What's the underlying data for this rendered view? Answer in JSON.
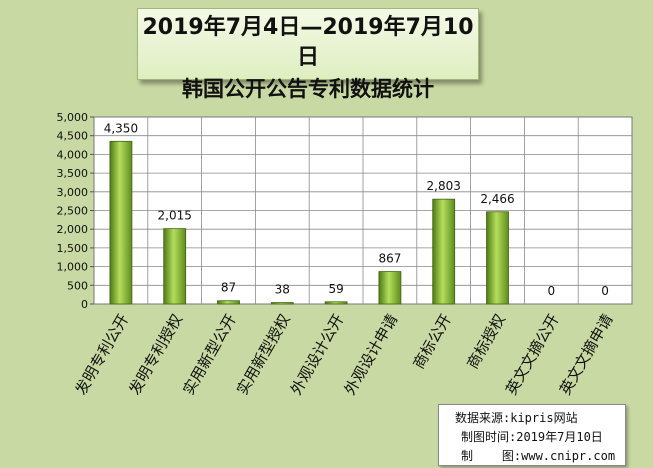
{
  "title": {
    "line1": "2019年7月4日—2019年7月10日",
    "line2": "韩国公开公告专利数据统计"
  },
  "source": {
    "data_source_label": "数据来源:",
    "data_source_value": "kipris网站",
    "date_label": "制图时间:",
    "date_value": "2019年7月10日",
    "maker_label": "制    图:",
    "maker_value": "www.cnipr.com"
  },
  "colors": {
    "background": "#c9d9a3",
    "plot_background": "#ffffff",
    "bar_light": "#b5de5c",
    "bar_dark": "#4f7a16"
  },
  "chart_data": {
    "type": "bar",
    "categories": [
      "发明专利公开",
      "发明专利授权",
      "实用新型公开",
      "实用新型授权",
      "外观设计公开",
      "外观设计申请",
      "商标公开",
      "商标授权",
      "英文文摘公开",
      "英文文摘申请"
    ],
    "values": [
      4350,
      2015,
      87,
      38,
      59,
      867,
      2803,
      2466,
      0,
      0
    ],
    "value_labels": [
      "4,350",
      "2,015",
      "87",
      "38",
      "59",
      "867",
      "2,803",
      "2,466",
      "0",
      "0"
    ],
    "y_ticks": [
      "0",
      "500",
      "1,000",
      "1,500",
      "2,000",
      "2,500",
      "3,000",
      "3,500",
      "4,000",
      "4,500",
      "5,000"
    ],
    "ylim": [
      0,
      5000
    ],
    "grid": true,
    "legend": "none"
  }
}
